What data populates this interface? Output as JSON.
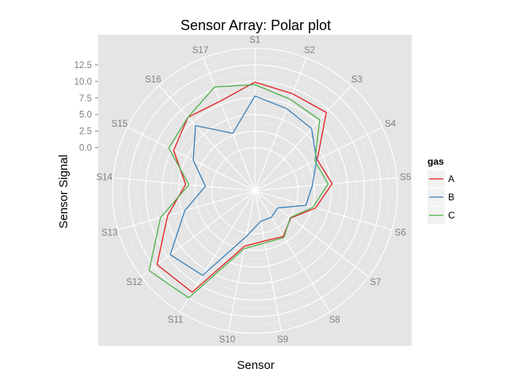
{
  "chart_data": {
    "type": "line",
    "coordinate_system": "polar",
    "title": "Sensor Array: Polar plot",
    "xlabel": "Sensor",
    "ylabel": "Sensor Signal",
    "categories": [
      "S1",
      "S2",
      "S3",
      "S4",
      "S5",
      "S6",
      "S7",
      "S8",
      "S9",
      "S10",
      "S11",
      "S12",
      "S13",
      "S14",
      "S15",
      "S16",
      "S17"
    ],
    "r_ticks": [
      "0.0",
      "2.5",
      "5.0",
      "7.5",
      "10.0",
      "12.5"
    ],
    "r_tick_values": [
      0,
      2.5,
      5,
      7.5,
      10,
      12.5
    ],
    "r_range": [
      -6.5,
      15
    ],
    "grid": true,
    "legend": {
      "title": "gas",
      "position": "right"
    },
    "series": [
      {
        "name": "A",
        "color": "#e41a1c",
        "values": [
          9.9,
          9.2,
          9.5,
          4.0,
          5.2,
          3.0,
          0.3,
          1.6,
          1.2,
          2.0,
          11.5,
          12.0,
          7.2,
          4.0,
          7.2,
          8.5,
          8.0
        ]
      },
      {
        "name": "B",
        "color": "#377eb8",
        "values": [
          7.8,
          6.8,
          6.2,
          3.9,
          2.2,
          1.5,
          -2.2,
          -1.8,
          -1.8,
          0.5,
          8.5,
          9.5,
          4.5,
          1.0,
          3.9,
          6.8,
          2.8
        ]
      },
      {
        "name": "C",
        "color": "#4daf4a",
        "values": [
          9.5,
          8.3,
          8.0,
          3.6,
          4.6,
          2.6,
          0.2,
          1.8,
          1.5,
          2.4,
          12.5,
          13.5,
          8.3,
          3.5,
          8.0,
          8.5,
          10.3
        ]
      }
    ]
  }
}
